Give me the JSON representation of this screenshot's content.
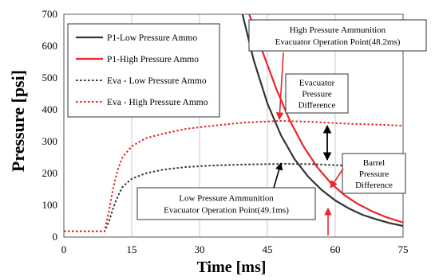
{
  "chart_data": {
    "type": "line",
    "xlabel": "Time [ms]",
    "ylabel": "Pressure [psi]",
    "xlim": [
      0,
      75
    ],
    "ylim": [
      0,
      700
    ],
    "xticks": [
      "0",
      "15",
      "30",
      "45",
      "60",
      "75"
    ],
    "yticks": [
      "0",
      "100",
      "200",
      "300",
      "400",
      "500",
      "600",
      "700"
    ],
    "grid": "vertical",
    "legend_position": "top-left",
    "series": [
      {
        "name": "P1-Low Pressure Ammo",
        "color": "#333333",
        "style": "solid",
        "points": [
          [
            39.5,
            700
          ],
          [
            42,
            555
          ],
          [
            45,
            420
          ],
          [
            48,
            320
          ],
          [
            51,
            245
          ],
          [
            54,
            190
          ],
          [
            57,
            148
          ],
          [
            60,
            115
          ],
          [
            63,
            90
          ],
          [
            66,
            70
          ],
          [
            69,
            56
          ],
          [
            72,
            44
          ],
          [
            75,
            35
          ]
        ]
      },
      {
        "name": "P1-High Pressure Ammo",
        "color": "#e8262b",
        "style": "solid",
        "points": [
          [
            41,
            700
          ],
          [
            44,
            580
          ],
          [
            47,
            465
          ],
          [
            50,
            365
          ],
          [
            53,
            285
          ],
          [
            56,
            220
          ],
          [
            59,
            170
          ],
          [
            62,
            132
          ],
          [
            65,
            104
          ],
          [
            68,
            82
          ],
          [
            71,
            64
          ],
          [
            74,
            50
          ],
          [
            75,
            46
          ]
        ]
      },
      {
        "name": "Eva - Low Pressure Ammo",
        "color": "#333333",
        "style": "dotted",
        "points": [
          [
            0,
            18
          ],
          [
            9,
            18
          ],
          [
            10,
            50
          ],
          [
            11,
            95
          ],
          [
            12,
            130
          ],
          [
            13,
            158
          ],
          [
            15,
            183
          ],
          [
            18,
            200
          ],
          [
            22,
            212
          ],
          [
            27,
            220
          ],
          [
            33,
            225
          ],
          [
            40,
            228
          ],
          [
            49,
            230
          ],
          [
            55,
            229
          ],
          [
            60,
            226
          ],
          [
            65,
            223
          ],
          [
            70,
            220
          ],
          [
            75,
            218
          ]
        ]
      },
      {
        "name": "Eva - High Pressure Ammo",
        "color": "#e8262b",
        "style": "dotted",
        "points": [
          [
            0,
            18
          ],
          [
            9,
            18
          ],
          [
            10,
            85
          ],
          [
            11,
            160
          ],
          [
            12,
            215
          ],
          [
            13,
            252
          ],
          [
            15,
            285
          ],
          [
            18,
            310
          ],
          [
            22,
            325
          ],
          [
            27,
            340
          ],
          [
            33,
            350
          ],
          [
            40,
            360
          ],
          [
            48,
            365
          ],
          [
            55,
            362
          ],
          [
            60,
            358
          ],
          [
            65,
            355
          ],
          [
            70,
            353
          ],
          [
            75,
            350
          ]
        ]
      }
    ],
    "annotations": [
      {
        "id": "high_op",
        "lines": [
          "High Pressure Ammunition",
          "Evacuator Operation Point(48.2ms)"
        ]
      },
      {
        "id": "eva_diff",
        "lines": [
          "Evacuator",
          "Pressure",
          "Difference"
        ]
      },
      {
        "id": "barrel_diff",
        "lines": [
          "Barrel",
          "Pressure",
          "Difference"
        ]
      },
      {
        "id": "low_op",
        "lines": [
          "Low Pressure Ammunition",
          "Evacuator Operation Point(49.1ms)"
        ]
      }
    ]
  }
}
